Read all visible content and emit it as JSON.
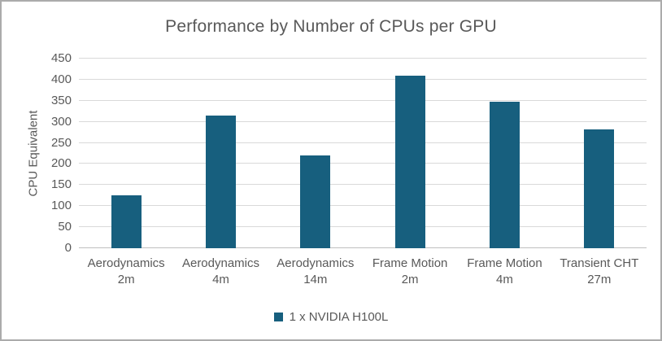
{
  "chart_data": {
    "type": "bar",
    "title": "Performance by Number of CPUs per GPU",
    "xlabel": "",
    "ylabel": "CPU Equivalent",
    "ylim": [
      0,
      450
    ],
    "ytick_step": 50,
    "grid": true,
    "categories": [
      "Aerodynamics 2m",
      "Aerodynamics 4m",
      "Aerodynamics 14m",
      "Frame Motion 2m",
      "Frame Motion 4m",
      "Transient CHT 27m"
    ],
    "category_lines": [
      [
        "Aerodynamics",
        "2m"
      ],
      [
        "Aerodynamics",
        "4m"
      ],
      [
        "Aerodynamics",
        "14m"
      ],
      [
        "Frame Motion",
        "2m"
      ],
      [
        "Frame Motion",
        "4m"
      ],
      [
        "Transient CHT",
        "27m"
      ]
    ],
    "series": [
      {
        "name": "1 x NVIDIA H100L",
        "values": [
          125,
          315,
          220,
          410,
          347,
          282
        ],
        "color": "#175f7e"
      }
    ],
    "legend": {
      "position": "bottom",
      "label": "1 x NVIDIA H100L"
    }
  },
  "colors": {
    "bar": "#175f7e",
    "gridline": "#d9d9d9",
    "baseline": "#bfbfbf",
    "text": "#595959",
    "frame_border": "#ababab"
  }
}
